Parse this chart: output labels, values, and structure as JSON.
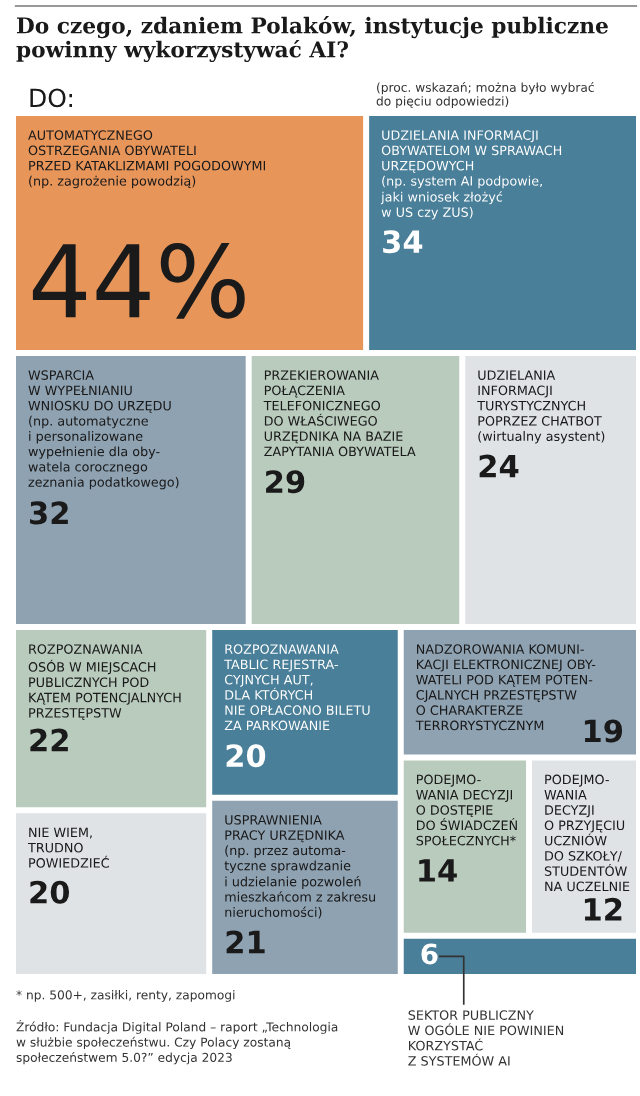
{
  "chart_data": {
    "type": "other",
    "title": "Do czego, zdaniem Polaków, instytucje publiczne\npowinny wykorzystywać AI?",
    "subtitle": "(proc. wskazań; można było wybrać\ndo pięciu odpowiedzi)",
    "categories": [
      "AUTOMATYCZNEGO\nOSTRZEGANIA OBYWATELI\nPRZED KATAKLIZMAMI POGODOWYMI\n(np. zagrożenie powodzią)",
      "UDZIELANIA INFORMACJI\nOBYWATELOM W SPRAWACH\nURZĘDOWYCH\n(np. system AI podpowie,\njaki wniosek złożyć\nw US czy ZUS)",
      "WSPARCIA\nW WYPEŁNIANIU\nWNIOSKU DO URZĘDU\n(np. automatyczne\ni personalizowane\nwypełnienie dla oby-\nwatela corocznego\nzeznania podatkowego)",
      "PRZEKIEROWANIA\nPOŁĄCZENIA\nTELEFONICZNEGO\nDO WŁAŚCIWEGO\nURZĘDNIKA NA BAZIE\nZAPYTANIA OBYWATELA",
      "UDZIELANIA\nINFORMACJI\nTURYSTYCZNYCH\nPOPRZEZ CHATBOT\n(wirtualny asystent)",
      "ROZPOZNAWANIA\nOSÓB W MIEJSCACH\nPUBLICZNYCH POD\nKĄTEM POTENCJALNYCH\nPRZESTĘPSTW",
      "ROZPOZNAWANIA\nTABLIC REJESTRA-\nCYJNYCH AUT,\nDLA KTÓRYCH\nNIE OPŁACONO BILETU\nZA PARKOWANIE",
      "NADZOROWANIA KOMUNI-\nKACJI ELEKTRONICZNEJ OBY-\nWATELI POD KĄTEM POTEN-\nCJALNYCH PRZESTĘPSTW\nO CHARAKTERZE\nTERRORYSTYCZNYM",
      "PODEJMO-\nWANIA DECYZJI\nO DOSTĘPIE\nDO ŚWIADCZEŃ\nSPOŁECZNYCH*",
      "PODEJMO-\nWANIA\nDECYZJI\nO PRZYJĘCIU\nUCZNIÓW\nDO SZKOŁY/\nSTUDENTÓW\nNA UCZELNIE",
      "NIE WIEM,\nTRUDNO\nPOWIEDZIEĆ",
      "USPRAWNIENIA\nPRACY URZĘDNIKA\n(np. przez automa-\ntyczne sprawdzanie\ni udzielanie pozwoleń\nmieszkańcom z zakresu\nnieruchomości)",
      "SEKTOR PUBLICZNY\nW OGÓLE NIE POWINIEN\nKORZYSTAĆ\nZ SYSTEMÓW AI"
    ],
    "values": [
      44,
      34,
      32,
      29,
      24,
      22,
      20,
      19,
      14,
      12,
      20,
      21,
      6
    ],
    "value_labels": [
      "44%",
      "34",
      "32",
      "29",
      "24",
      "22",
      "20",
      "19",
      "14",
      "12",
      "20",
      "21",
      "6"
    ],
    "colors": [
      "#e8955a",
      "#4a7f99",
      "#8fa2b2",
      "#b9cbbd",
      "#dfe3e6",
      "#b9cbbd",
      "#4a7f99",
      "#8fa2b2",
      "#b9cbbd",
      "#dfe3e6",
      "#dfe3e6",
      "#8fa2b2",
      "#4a7f99"
    ],
    "annotations": [
      "DO:",
      "* np. 500+, zasiłki, renty, zapomogi",
      "Źródło: Fundacja Digital Poland – raport „Technologia\nw służbie społeczeństwu. Czy Polacy zostaną\nspołeczeństwem 5.0?” edycja 2023"
    ]
  }
}
